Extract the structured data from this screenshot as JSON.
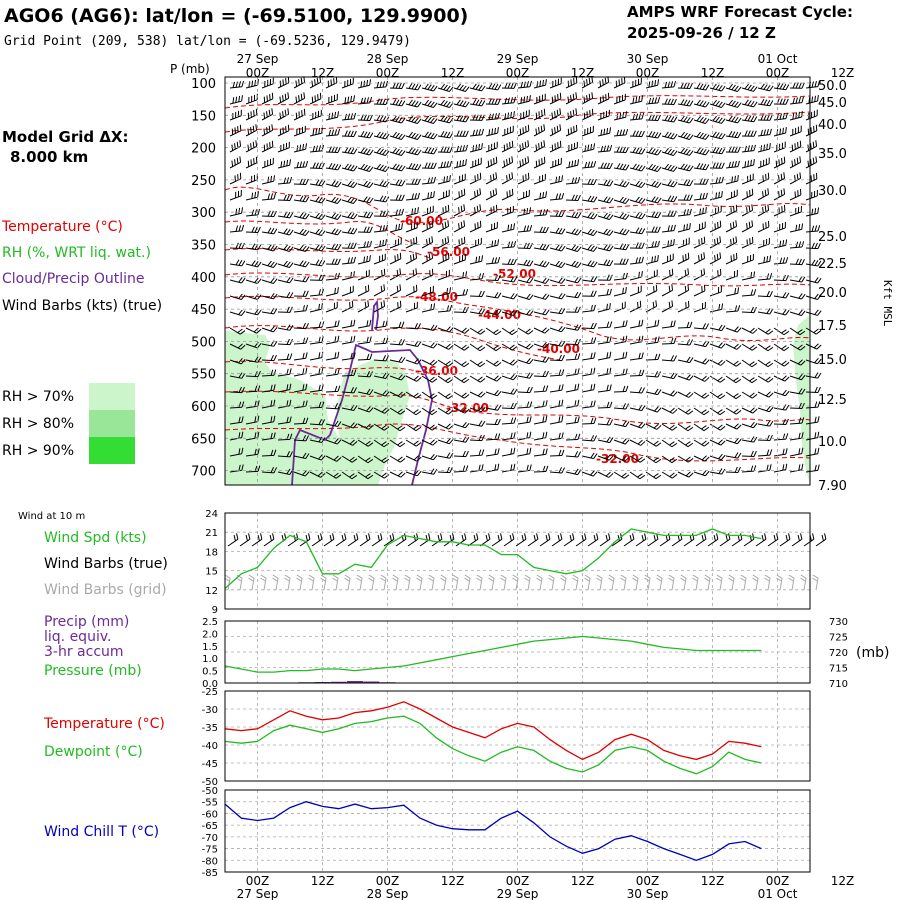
{
  "header": {
    "station": "AGO6 (AG6):  lat/lon = (-69.5100, 129.9900)",
    "gridpoint": "Grid Point (209, 538) lat/lon = (-69.5236, 129.9479)",
    "cycle_label": "AMPS WRF Forecast Cycle:",
    "cycle_value": "2025-09-26 / 12  Z",
    "model_grid_label": "Model Grid ΔX:",
    "model_grid_value": "8.000 km"
  },
  "colors": {
    "temperature": "#e00000",
    "rh": "#22bb22",
    "cloud": "#6a2a9a",
    "wind": "#000000",
    "wind_grid": "#aaaaaa",
    "rh70": "#ccf5cc",
    "rh80": "#99e699",
    "rh90": "#33dd33",
    "windchill": "#0000bb"
  },
  "time_axis": {
    "hours": [
      "00Z",
      "12Z",
      "00Z",
      "12Z",
      "00Z",
      "12Z",
      "00Z",
      "12Z",
      "00Z",
      "12Z"
    ],
    "dates": [
      "27 Sep",
      "28 Sep",
      "29 Sep",
      "30 Sep",
      "01 Oct"
    ]
  },
  "main_panel": {
    "p_label": "P (mb)",
    "pressure_ticks": [
      "100",
      "150",
      "200",
      "250",
      "300",
      "350",
      "400",
      "450",
      "500",
      "550",
      "600",
      "650",
      "700"
    ],
    "kft_ticks": [
      "50.0",
      "45.0",
      "40.0",
      "35.0",
      "30.0",
      "25.0",
      "22.5",
      "20.0",
      "17.5",
      "15.0",
      "12.5",
      "10.0",
      "7.90"
    ],
    "kft_label": "Kft MSL",
    "temp_labels": [
      "-60.00",
      "-56.00",
      "-52.00",
      "-48.00",
      "-44.00",
      "-40.00",
      "-36.00",
      "-32.00",
      "-32.00"
    ]
  },
  "legend": {
    "temperature": "Temperature (°C)",
    "rh": "RH (%, WRT liq. wat.)",
    "cloud": "Cloud/Precip Outline",
    "wind": "Wind Barbs (kts) (true)",
    "rh70": "RH > 70%",
    "rh80": "RH > 80%",
    "rh90": "RH > 90%"
  },
  "panel_wind": {
    "title": "Wind at 10 m",
    "spd_label": "Wind Spd (kts)",
    "barbs_true_label": "Wind Barbs (true)",
    "barbs_grid_label": "Wind Barbs (grid)"
  },
  "panel_precip": {
    "precip_label_1": "Precip (mm)",
    "precip_label_2": "liq. equiv.",
    "precip_label_3": "3-hr accum",
    "pressure_label": "Pressure (mb)",
    "right_unit": "(mb)"
  },
  "panel_temp": {
    "temp_label": "Temperature (°C)",
    "dew_label": "Dewpoint (°C)"
  },
  "panel_chill": {
    "label": "Wind Chill T (°C)"
  },
  "chart_data": [
    {
      "type": "line",
      "title": "Wind at 10 m",
      "x_hours": [
        0,
        3,
        6,
        9,
        12,
        15,
        18,
        21,
        24,
        27,
        30,
        33,
        36,
        39,
        42,
        45,
        48,
        51,
        54,
        57,
        60,
        63,
        66,
        69,
        72,
        75,
        78,
        81,
        84,
        87,
        90,
        93,
        96,
        99
      ],
      "series": [
        {
          "name": "Wind Spd (kts)",
          "values": [
            12.2,
            14.5,
            15.5,
            18.5,
            20.5,
            19.5,
            14.5,
            14.5,
            16,
            15.5,
            19,
            20.5,
            20,
            19.5,
            19.5,
            19,
            19,
            17.5,
            17.5,
            15.5,
            15,
            14.5,
            15,
            17,
            19.5,
            21.5,
            21,
            20.5,
            20.5,
            20.5,
            21.5,
            20.5,
            20.5,
            20
          ]
        }
      ],
      "ylim": [
        9,
        24
      ],
      "yticks": [
        "24",
        "21",
        "18",
        "15",
        "12",
        "9"
      ]
    },
    {
      "type": "line",
      "title": "Pressure (mb)",
      "x_hours": [
        0,
        3,
        6,
        9,
        12,
        15,
        18,
        21,
        24,
        27,
        30,
        33,
        36,
        39,
        42,
        45,
        48,
        51,
        54,
        57,
        60,
        63,
        66,
        69,
        72,
        75,
        78,
        81,
        84,
        87,
        90,
        93,
        96,
        99
      ],
      "series": [
        {
          "name": "Pressure (mb)",
          "values": [
            715.5,
            714.5,
            713.5,
            713.5,
            714,
            714,
            714.5,
            714.5,
            714,
            714.5,
            715,
            715.5,
            716.5,
            717.5,
            718.5,
            719.5,
            720.5,
            721.5,
            722.5,
            723.5,
            724,
            724.5,
            725,
            724.5,
            724,
            723.5,
            722.5,
            721.5,
            721,
            720.5,
            720.5,
            720.5,
            720.5,
            720.5
          ]
        }
      ],
      "ylim": [
        710,
        730
      ],
      "yticks_right": [
        "730",
        "725",
        "720",
        "715",
        "710"
      ],
      "yticks_left": [
        "2.5",
        "2.0",
        "1.5",
        "1.0",
        "0.5",
        "0.0"
      ],
      "precip": {
        "name": "Precip (mm)",
        "x_hours": [
          12,
          15,
          18,
          21,
          24,
          27,
          30,
          33
        ],
        "values": [
          0.02,
          0.03,
          0.04,
          0.05,
          0.08,
          0.06,
          0.03,
          0.02
        ]
      }
    },
    {
      "type": "line",
      "title": "Temperature / Dewpoint",
      "x_hours": [
        0,
        3,
        6,
        9,
        12,
        15,
        18,
        21,
        24,
        27,
        30,
        33,
        36,
        39,
        42,
        45,
        48,
        51,
        54,
        57,
        60,
        63,
        66,
        69,
        72,
        75,
        78,
        81,
        84,
        87,
        90,
        93,
        96,
        99
      ],
      "series": [
        {
          "name": "Temperature (°C)",
          "values": [
            -35.5,
            -36,
            -35.5,
            -33,
            -30.5,
            -32,
            -33,
            -32.5,
            -31,
            -30.5,
            -29.5,
            -28,
            -30,
            -32.5,
            -35,
            -36.5,
            -38,
            -35.5,
            -34,
            -35,
            -38.5,
            -41.5,
            -44,
            -42,
            -38.5,
            -37,
            -38.5,
            -41.5,
            -43,
            -44,
            -42.5,
            -39,
            -39.5,
            -40.5
          ]
        },
        {
          "name": "Dewpoint (°C)",
          "values": [
            -39,
            -39.5,
            -39,
            -36,
            -34.5,
            -35.5,
            -36.5,
            -35.5,
            -34,
            -33.5,
            -32.5,
            -32,
            -34,
            -38,
            -41,
            -43,
            -44.5,
            -42,
            -40.5,
            -41.5,
            -44.5,
            -46.5,
            -47.5,
            -45.5,
            -41.5,
            -40.5,
            -41.5,
            -44.5,
            -46.5,
            -48,
            -46,
            -42,
            -44,
            -45
          ]
        }
      ],
      "ylim": [
        -50,
        -25
      ],
      "yticks": [
        "-25",
        "-30",
        "-35",
        "-40",
        "-45",
        "-50"
      ]
    },
    {
      "type": "line",
      "title": "Wind Chill T",
      "x_hours": [
        0,
        3,
        6,
        9,
        12,
        15,
        18,
        21,
        24,
        27,
        30,
        33,
        36,
        39,
        42,
        45,
        48,
        51,
        54,
        57,
        60,
        63,
        66,
        69,
        72,
        75,
        78,
        81,
        84,
        87,
        90,
        93,
        96,
        99
      ],
      "series": [
        {
          "name": "Wind Chill T (°C)",
          "values": [
            -56,
            -62,
            -63,
            -62,
            -57.5,
            -55,
            -57,
            -58,
            -56,
            -58,
            -57.5,
            -56.5,
            -62,
            -65,
            -66.5,
            -67,
            -67,
            -62,
            -59,
            -64,
            -70,
            -74,
            -77,
            -75,
            -71,
            -69.5,
            -72,
            -75,
            -77.5,
            -80,
            -77.5,
            -73,
            -72,
            -75
          ]
        }
      ],
      "ylim": [
        -85,
        -50
      ],
      "yticks": [
        "-50",
        "-55",
        "-60",
        "-65",
        "-70",
        "-75",
        "-80",
        "-85"
      ]
    }
  ]
}
